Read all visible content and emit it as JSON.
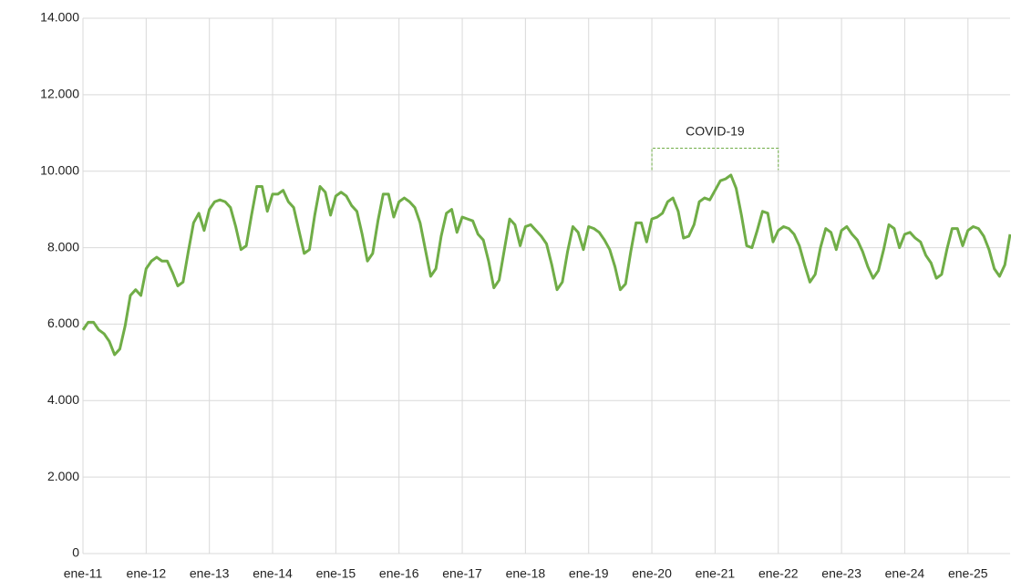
{
  "chart_data": {
    "type": "line",
    "categories": [
      "ene-11",
      null,
      null,
      null,
      null,
      null,
      null,
      null,
      null,
      null,
      null,
      null,
      "ene-12",
      null,
      null,
      null,
      null,
      null,
      null,
      null,
      null,
      null,
      null,
      null,
      "ene-13",
      null,
      null,
      null,
      null,
      null,
      null,
      null,
      null,
      null,
      null,
      null,
      "ene-14",
      null,
      null,
      null,
      null,
      null,
      null,
      null,
      null,
      null,
      null,
      null,
      "ene-15",
      null,
      null,
      null,
      null,
      null,
      null,
      null,
      null,
      null,
      null,
      null,
      "ene-16",
      null,
      null,
      null,
      null,
      null,
      null,
      null,
      null,
      null,
      null,
      null,
      "ene-17",
      null,
      null,
      null,
      null,
      null,
      null,
      null,
      null,
      null,
      null,
      null,
      "ene-18",
      null,
      null,
      null,
      null,
      null,
      null,
      null,
      null,
      null,
      null,
      null,
      "ene-19",
      null,
      null,
      null,
      null,
      null,
      null,
      null,
      null,
      null,
      null,
      null,
      "ene-20",
      null,
      null,
      null,
      null,
      null,
      null,
      null,
      null,
      null,
      null,
      null,
      "ene-21",
      null,
      null,
      null,
      null,
      null,
      null,
      null,
      null,
      null,
      null,
      null,
      "ene-22",
      null,
      null,
      null,
      null,
      null,
      null,
      null,
      null,
      null,
      null,
      null,
      "ene-23",
      null,
      null,
      null,
      null,
      null,
      null,
      null,
      null,
      null,
      null,
      null,
      "ene-24",
      null,
      null,
      null,
      null,
      null,
      null,
      null,
      null,
      null,
      null,
      null,
      "ene-25",
      null,
      null,
      null,
      null,
      null,
      null,
      null,
      null
    ],
    "series": [
      {
        "color": "#70ad47",
        "values": [
          5850,
          6050,
          6050,
          5850,
          5750,
          5550,
          5200,
          5350,
          5950,
          6750,
          6900,
          6750,
          7450,
          7650,
          7750,
          7650,
          7650,
          7350,
          7000,
          7100,
          7900,
          8650,
          8900,
          8450,
          9000,
          9200,
          9250,
          9200,
          9050,
          8550,
          7950,
          8050,
          8850,
          9600,
          9600,
          8950,
          9400,
          9400,
          9500,
          9200,
          9050,
          8450,
          7850,
          7950,
          8850,
          9600,
          9450,
          8850,
          9350,
          9450,
          9350,
          9100,
          8950,
          8350,
          7650,
          7850,
          8700,
          9400,
          9400,
          8800,
          9200,
          9300,
          9200,
          9050,
          8650,
          7950,
          7250,
          7450,
          8300,
          8900,
          9000,
          8400,
          8800,
          8750,
          8700,
          8350,
          8200,
          7650,
          6950,
          7150,
          7950,
          8750,
          8600,
          8050,
          8550,
          8600,
          8450,
          8300,
          8100,
          7550,
          6900,
          7100,
          7900,
          8550,
          8400,
          7950,
          8550,
          8500,
          8400,
          8200,
          7950,
          7500,
          6900,
          7050,
          7900,
          8650,
          8650,
          8150,
          8750,
          8800,
          8900,
          9200,
          9300,
          8950,
          8250,
          8300,
          8600,
          9200,
          9300,
          9250,
          9500,
          9750,
          9800,
          9900,
          9550,
          8850,
          8050,
          8000,
          8450,
          8950,
          8900,
          8150,
          8450,
          8550,
          8500,
          8350,
          8050,
          7550,
          7100,
          7300,
          8000,
          8500,
          8400,
          7950,
          8450,
          8550,
          8350,
          8200,
          7900,
          7500,
          7200,
          7400,
          7950,
          8600,
          8500,
          8000,
          8350,
          8400,
          8250,
          8150,
          7800,
          7600,
          7200,
          7300,
          7950,
          8500,
          8500,
          8050,
          8450,
          8550,
          8500,
          8300,
          7950,
          7450,
          7250,
          7550,
          8350
        ]
      }
    ],
    "ylim": [
      0,
      14000
    ],
    "yticks": [
      0,
      {
        "value": 2000,
        "label": "2.000"
      },
      {
        "value": 4000,
        "label": "4.000"
      },
      {
        "value": 6000,
        "label": "6.000"
      },
      {
        "value": 8000,
        "label": "8.000"
      },
      {
        "value": 10000,
        "label": "10.000"
      },
      {
        "value": 12000,
        "label": "12.000"
      },
      {
        "value": 14000,
        "label": "14.000"
      }
    ],
    "grid": true,
    "annotations": [
      {
        "text": "COVID-19",
        "x": [
          "ene-20",
          "ene-22"
        ],
        "y": 10600
      }
    ]
  }
}
